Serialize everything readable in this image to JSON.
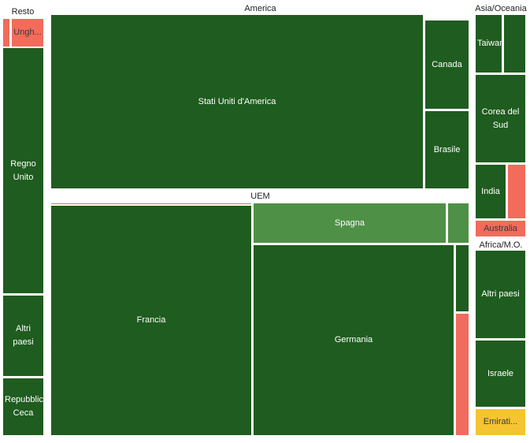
{
  "chart_data": {
    "type": "treemap",
    "groups": [
      {
        "name": "Resto",
        "cells": [
          {
            "label": "",
            "color": "#f26b5b"
          },
          {
            "label": "Ungh...",
            "color": "#f26b5b"
          },
          {
            "label": "Regno Unito",
            "color": "#1f5c1f"
          },
          {
            "label": "Altri paesi",
            "color": "#1f5c1f"
          },
          {
            "label": "Repubblica Ceca",
            "color": "#1f5c1f"
          }
        ]
      },
      {
        "name": "America",
        "cells": [
          {
            "label": "Stati Uniti d'America",
            "color": "#1f5c1f"
          },
          {
            "label": "Canada",
            "color": "#1f5c1f"
          },
          {
            "label": "Brasile",
            "color": "#1f5c1f"
          }
        ]
      },
      {
        "name": "UEM",
        "cells": [
          {
            "label": "",
            "color": "#f26b5b"
          },
          {
            "label": "Francia",
            "color": "#1f5c1f"
          },
          {
            "label": "Spagna",
            "color": "#4e9146"
          },
          {
            "label": "",
            "color": "#4e9146"
          },
          {
            "label": "Germania",
            "color": "#1f5c1f"
          },
          {
            "label": "",
            "color": "#1f5c1f"
          },
          {
            "label": "",
            "color": "#f26b5b"
          }
        ]
      },
      {
        "name": "Asia/Oceania",
        "cells": [
          {
            "label": "Taiwan",
            "color": "#1f5c1f"
          },
          {
            "label": "",
            "color": "#1f5c1f"
          },
          {
            "label": "Corea del Sud",
            "color": "#1f5c1f"
          },
          {
            "label": "India",
            "color": "#1f5c1f"
          },
          {
            "label": "",
            "color": "#f26b5b"
          },
          {
            "label": "Australia",
            "color": "#f26b5b"
          }
        ]
      },
      {
        "name": "Africa/M.O.",
        "cells": [
          {
            "label": "Altri paesi",
            "color": "#1f5c1f"
          },
          {
            "label": "Israele",
            "color": "#1f5c1f"
          },
          {
            "label": "Emirati...",
            "color": "#f5c431"
          }
        ]
      }
    ]
  }
}
